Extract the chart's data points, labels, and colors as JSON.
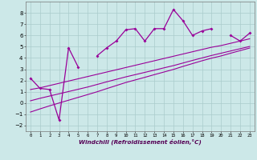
{
  "xlabel": "Windchill (Refroidissement éolien,°C)",
  "bg_color": "#cce8e8",
  "line_color": "#990099",
  "grid_color": "#aacccc",
  "x_data": [
    0,
    1,
    2,
    3,
    4,
    5,
    6,
    7,
    8,
    9,
    10,
    11,
    12,
    13,
    14,
    15,
    16,
    17,
    18,
    19,
    20,
    21,
    22,
    23
  ],
  "y_scatter": [
    2.2,
    1.3,
    1.2,
    -1.5,
    4.9,
    3.2,
    null,
    4.2,
    4.9,
    5.5,
    6.5,
    6.6,
    5.5,
    6.6,
    6.6,
    8.3,
    7.3,
    6.0,
    6.4,
    6.6,
    null,
    6.0,
    5.5,
    6.2
  ],
  "y_line1": [
    1.2,
    1.35,
    1.55,
    1.75,
    1.95,
    2.15,
    2.35,
    2.55,
    2.75,
    2.95,
    3.15,
    3.35,
    3.55,
    3.75,
    3.95,
    4.15,
    4.35,
    4.55,
    4.75,
    4.95,
    5.1,
    5.3,
    5.5,
    5.7
  ],
  "y_line2": [
    0.2,
    0.42,
    0.62,
    0.82,
    1.02,
    1.22,
    1.42,
    1.65,
    1.88,
    2.1,
    2.32,
    2.52,
    2.72,
    2.92,
    3.12,
    3.32,
    3.55,
    3.78,
    4.0,
    4.22,
    4.42,
    4.62,
    4.82,
    5.02
  ],
  "y_line3": [
    -0.8,
    -0.52,
    -0.25,
    0.0,
    0.25,
    0.5,
    0.75,
    1.0,
    1.28,
    1.55,
    1.82,
    2.05,
    2.28,
    2.52,
    2.75,
    2.98,
    3.25,
    3.5,
    3.75,
    3.98,
    4.18,
    4.42,
    4.65,
    4.88
  ],
  "ylim": [
    -2.5,
    9.0
  ],
  "xlim": [
    -0.5,
    23.5
  ],
  "yticks": [
    -2,
    -1,
    0,
    1,
    2,
    3,
    4,
    5,
    6,
    7,
    8
  ],
  "xtick_labels": [
    "0",
    "1",
    "2",
    "3",
    "4",
    "5",
    "6",
    "7",
    "8",
    "9",
    "10",
    "11",
    "12",
    "13",
    "14",
    "15",
    "16",
    "17",
    "18",
    "19",
    "20",
    "21",
    "22",
    "23"
  ]
}
